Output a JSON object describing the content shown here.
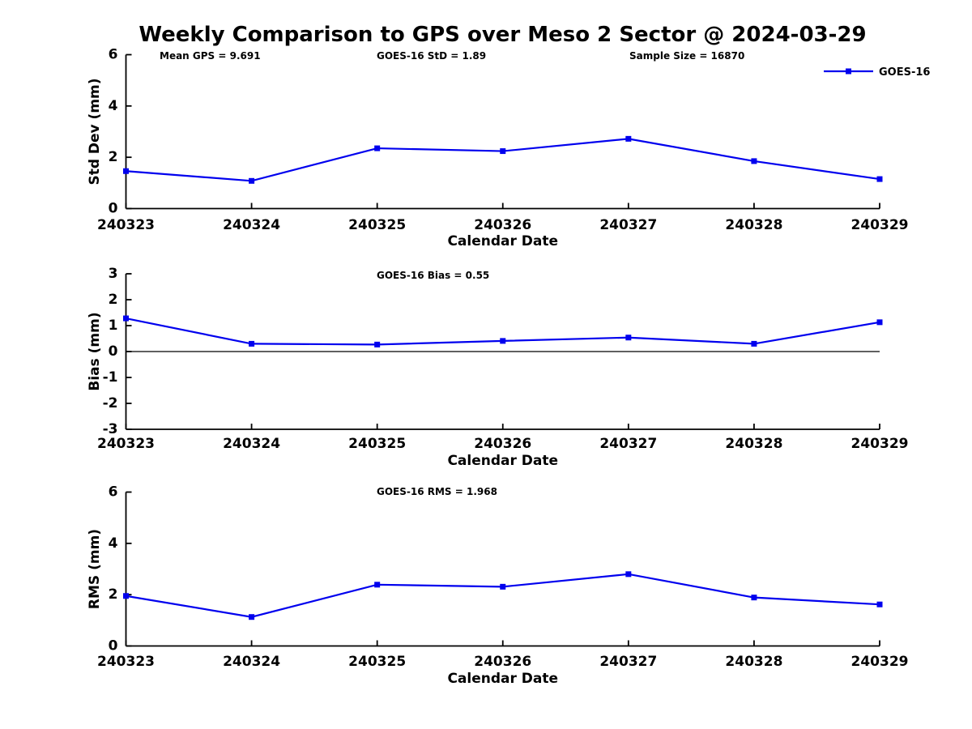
{
  "figure": {
    "title": "Weekly Comparison to GPS over Meso 2 Sector @ 2024-03-29",
    "legend": {
      "label": "GOES-16",
      "position": "top-right"
    },
    "colors": {
      "line": "#0000ee",
      "marker": "#0000ee",
      "axis": "#000000",
      "zero_line": "#000000",
      "background": "#ffffff"
    }
  },
  "chart_data": [
    {
      "type": "line",
      "title": "",
      "annotations": [
        "Mean GPS = 9.691",
        "GOES-16 StD = 1.89",
        "Sample Size = 16870"
      ],
      "x": [
        "240323",
        "240324",
        "240325",
        "240326",
        "240327",
        "240328",
        "240329"
      ],
      "series": [
        {
          "name": "GOES-16",
          "values": [
            1.46,
            1.08,
            2.35,
            2.24,
            2.72,
            1.85,
            1.15
          ]
        }
      ],
      "xlabel": "Calendar Date",
      "ylabel": "Std Dev (mm)",
      "ylim": [
        0,
        6
      ],
      "yticks": [
        0,
        2,
        4,
        6
      ],
      "grid": false,
      "zero_line": false,
      "legend": true
    },
    {
      "type": "line",
      "title": "",
      "annotations": [
        "GOES-16 Bias  = 0.55"
      ],
      "x": [
        "240323",
        "240324",
        "240325",
        "240326",
        "240327",
        "240328",
        "240329"
      ],
      "series": [
        {
          "name": "GOES-16",
          "values": [
            1.28,
            0.3,
            0.27,
            0.41,
            0.54,
            0.3,
            1.13
          ]
        }
      ],
      "xlabel": "Calendar Date",
      "ylabel": "Bias (mm)",
      "ylim": [
        -3,
        3
      ],
      "yticks": [
        -3,
        -2,
        -1,
        0,
        1,
        2,
        3
      ],
      "grid": false,
      "zero_line": true,
      "legend": false
    },
    {
      "type": "line",
      "title": "",
      "annotations": [
        "GOES-16 RMS = 1.968"
      ],
      "x": [
        "240323",
        "240324",
        "240325",
        "240326",
        "240327",
        "240328",
        "240329"
      ],
      "series": [
        {
          "name": "GOES-16",
          "values": [
            1.95,
            1.13,
            2.39,
            2.31,
            2.8,
            1.89,
            1.62
          ]
        }
      ],
      "xlabel": "Calendar Date",
      "ylabel": "RMS (mm)",
      "ylim": [
        0,
        6
      ],
      "yticks": [
        0,
        2,
        4,
        6
      ],
      "grid": false,
      "zero_line": false,
      "legend": false
    }
  ]
}
